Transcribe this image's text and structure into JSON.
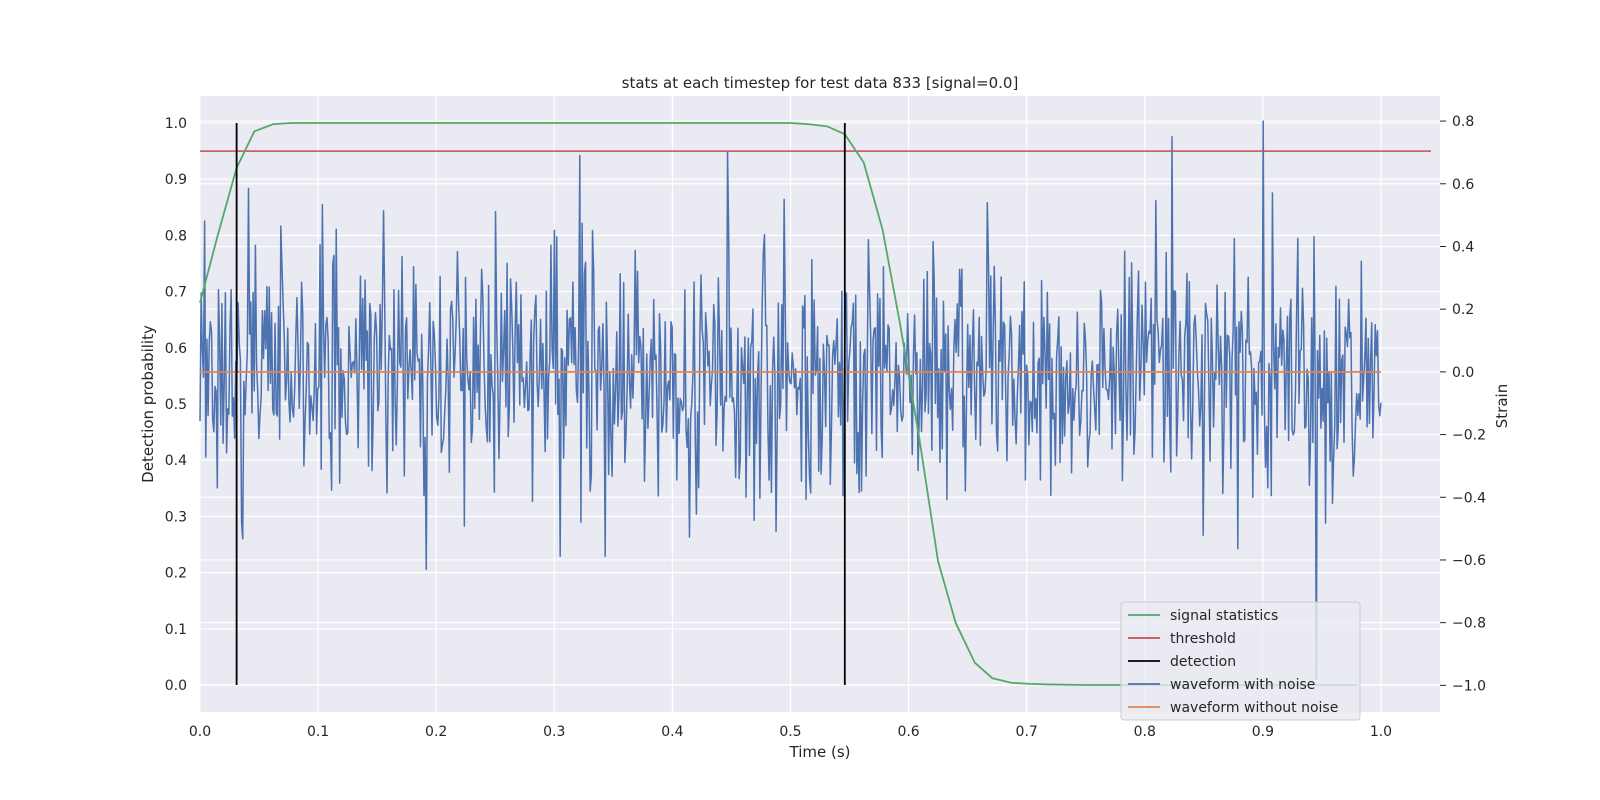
{
  "chart_data": {
    "type": "line",
    "title": "stats at each timestep for test data 833 [signal=0.0]",
    "xlabel": "Time (s)",
    "ylabel": "Detection probability",
    "y2label": "Strain",
    "xlim": [
      0.0,
      1.05
    ],
    "ylim": [
      -0.048,
      1.048
    ],
    "y2lim": [
      -1.085,
      0.88
    ],
    "x_ticks": [
      0.0,
      0.1,
      0.2,
      0.3,
      0.4,
      0.5,
      0.6,
      0.7,
      0.8,
      0.9,
      1.0
    ],
    "x_tick_labels": [
      "0.0",
      "0.1",
      "0.2",
      "0.3",
      "0.4",
      "0.5",
      "0.6",
      "0.7",
      "0.8",
      "0.9",
      "1.0"
    ],
    "y_ticks": [
      0.0,
      0.1,
      0.2,
      0.3,
      0.4,
      0.5,
      0.6,
      0.7,
      0.8,
      0.9,
      1.0
    ],
    "y_tick_labels": [
      "0.0",
      "0.1",
      "0.2",
      "0.3",
      "0.4",
      "0.5",
      "0.6",
      "0.7",
      "0.8",
      "0.9",
      "1.0"
    ],
    "y2_ticks": [
      -1.0,
      -0.8,
      -0.6,
      -0.4,
      -0.2,
      0.0,
      0.2,
      0.4,
      0.6,
      0.8
    ],
    "y2_tick_labels": [
      "−1.0",
      "−0.8",
      "−0.6",
      "−0.4",
      "−0.2",
      "0.0",
      "0.2",
      "0.4",
      "0.6",
      "0.8"
    ],
    "grid": true,
    "legend_position": "bottom-right",
    "series": [
      {
        "name": "signal statistics",
        "axis": "left",
        "color": "#55a868",
        "x": [
          0.0,
          0.015,
          0.031,
          0.046,
          0.062,
          0.078,
          0.1,
          0.2,
          0.3,
          0.4,
          0.5,
          0.515,
          0.531,
          0.546,
          0.562,
          0.578,
          0.593,
          0.609,
          0.625,
          0.64,
          0.656,
          0.671,
          0.687,
          0.703,
          0.718,
          0.75,
          0.8,
          0.85,
          0.9,
          0.95,
          0.98
        ],
        "y": [
          0.68,
          0.8,
          0.92,
          0.985,
          0.998,
          1.0,
          1.0,
          1.0,
          1.0,
          1.0,
          1.0,
          0.998,
          0.994,
          0.98,
          0.93,
          0.81,
          0.64,
          0.44,
          0.22,
          0.11,
          0.04,
          0.012,
          0.004,
          0.002,
          0.001,
          0.0,
          0.0,
          0.0,
          0.0,
          0.0,
          0.0
        ]
      },
      {
        "name": "threshold",
        "axis": "left",
        "color": "#c44e52",
        "x": [
          0.0,
          1.05
        ],
        "y": [
          0.95,
          0.95
        ]
      },
      {
        "name": "detection",
        "axis": "left",
        "color": "#000000",
        "segments": [
          {
            "x": 0.031,
            "y0": 0.0,
            "y1": 1.0
          },
          {
            "x": 0.546,
            "y0": 0.0,
            "y1": 1.0
          }
        ]
      },
      {
        "name": "waveform with noise",
        "axis": "right",
        "color": "#4c72b0",
        "x_start": 0.0,
        "x_end": 1.0,
        "n_points": 1024,
        "std": 0.2,
        "seed": 833,
        "peaks": [
          {
            "x": 0.9,
            "y": 0.8
          },
          {
            "x": 0.945,
            "y": -0.98
          },
          {
            "x": 0.823,
            "y": 0.75
          },
          {
            "x": 0.447,
            "y": 0.7
          },
          {
            "x": 0.322,
            "y": 0.69
          },
          {
            "x": 0.192,
            "y": -0.63
          },
          {
            "x": 0.015,
            "y": -0.37
          }
        ]
      },
      {
        "name": "waveform without noise",
        "axis": "right",
        "color": "#dd8452",
        "x": [
          0.0,
          1.0
        ],
        "y": [
          0.0,
          0.0
        ]
      }
    ]
  }
}
